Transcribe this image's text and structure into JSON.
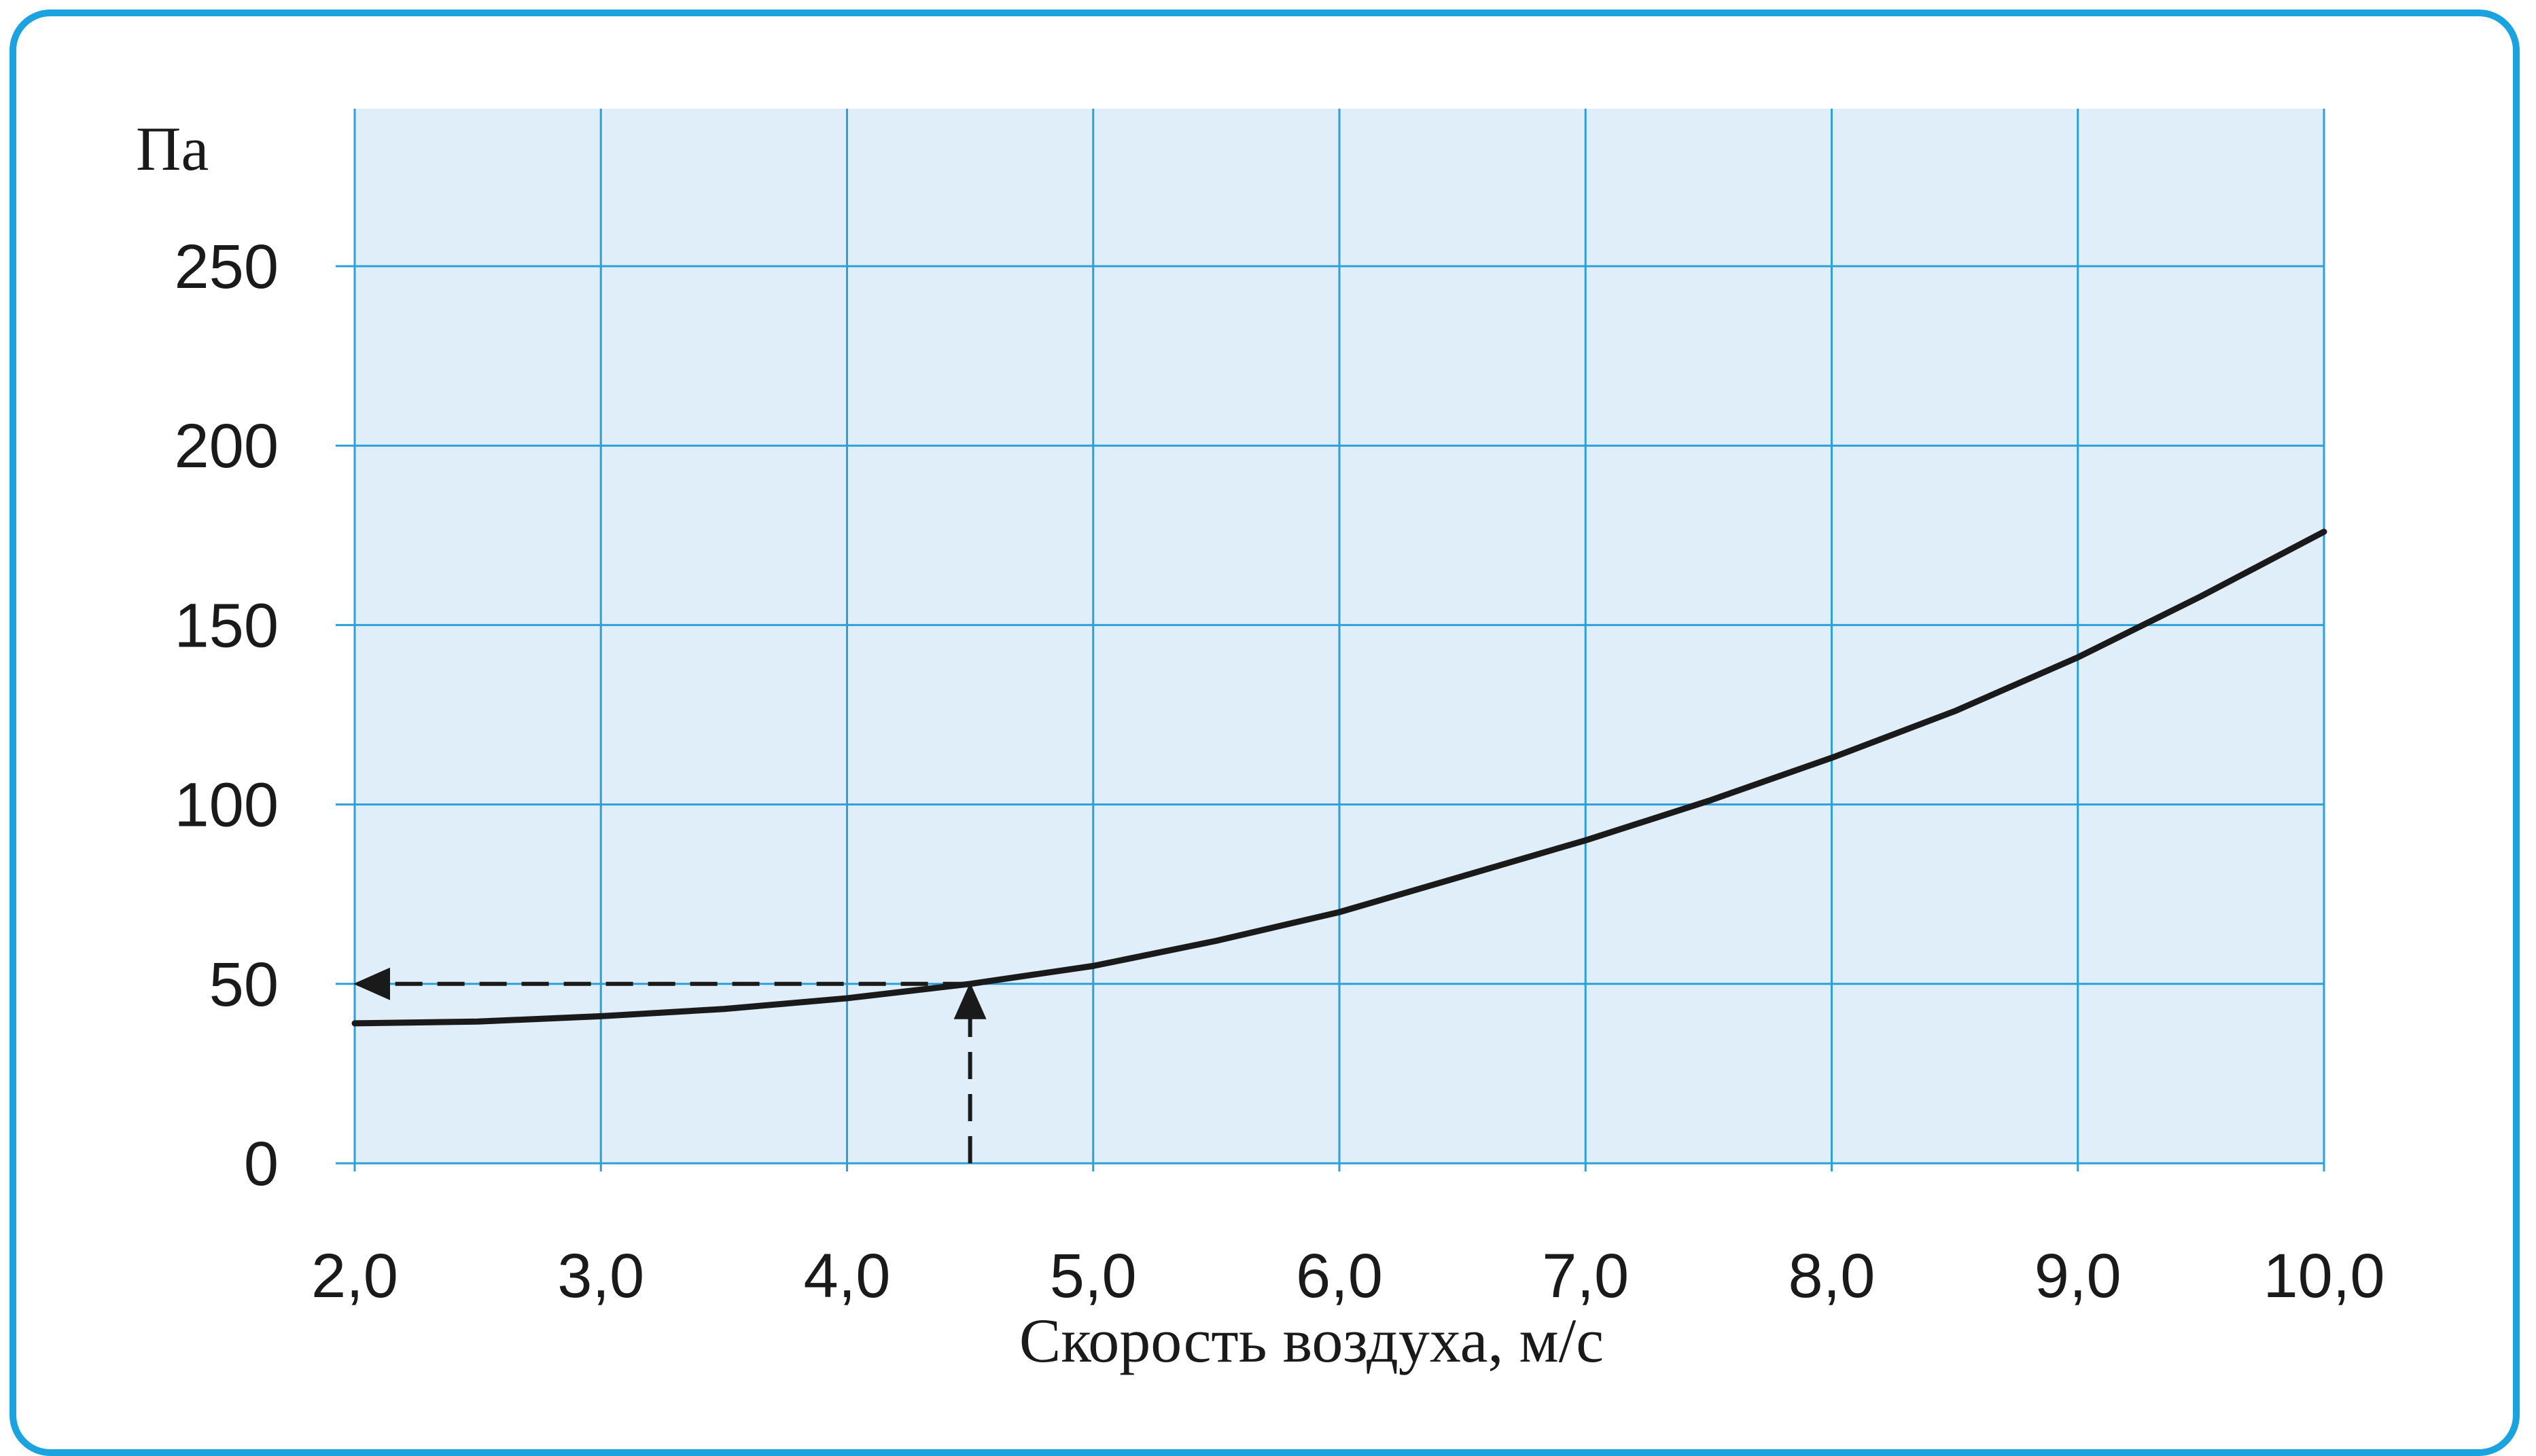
{
  "chart_data": {
    "type": "line",
    "title": "",
    "xlabel": "Скорость воздуха, м/с",
    "ylabel": "Па",
    "xlim": [
      2.0,
      10.0
    ],
    "ylim": [
      0,
      250
    ],
    "x_ticks": [
      "2,0",
      "3,0",
      "4,0",
      "5,0",
      "6,0",
      "7,0",
      "8,0",
      "9,0",
      "10,0"
    ],
    "y_ticks": [
      "0",
      "50",
      "100",
      "150",
      "200",
      "250"
    ],
    "grid": true,
    "legend": "none",
    "series": [
      {
        "x": [
          2.0,
          2.5,
          3.0,
          3.5,
          4.0,
          4.5,
          5.0,
          5.5,
          6.0,
          6.5,
          7.0,
          7.5,
          8.0,
          8.5,
          9.0,
          9.5,
          10.0
        ],
        "y": [
          39,
          39.5,
          41,
          43,
          46,
          50,
          55,
          62,
          70,
          80,
          90,
          101,
          113,
          126,
          141,
          158,
          176
        ]
      }
    ],
    "annotations": [
      {
        "type": "dashed-arrow",
        "direction": "up",
        "from": [
          4.5,
          0
        ],
        "to": [
          4.5,
          50
        ]
      },
      {
        "type": "dashed-arrow",
        "direction": "left",
        "from": [
          4.5,
          50
        ],
        "to": [
          2.0,
          50
        ]
      }
    ],
    "colors": {
      "plot_background": "#dfeef9",
      "grid": "#2d9fd9",
      "line": "#1a1a1a",
      "frame_border": "#1ba3e0"
    }
  }
}
